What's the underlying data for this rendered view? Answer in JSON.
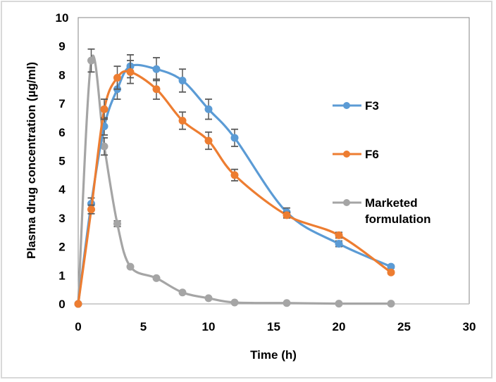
{
  "chart_data": {
    "type": "line",
    "title": "",
    "xlabel": "Time (h)",
    "ylabel": "Plasma drug concentration (µg/ml)",
    "xlim": [
      0,
      30
    ],
    "ylim": [
      0,
      10
    ],
    "xticks": [
      0,
      5,
      10,
      15,
      20,
      25,
      30
    ],
    "yticks": [
      0,
      1,
      2,
      3,
      4,
      5,
      6,
      7,
      8,
      9,
      10
    ],
    "grid": false,
    "smooth": true,
    "legend_position": "right",
    "x": [
      0,
      1,
      2,
      3,
      4,
      6,
      8,
      10,
      12,
      16,
      20,
      24
    ],
    "series": [
      {
        "name": "F3",
        "color": "#5b9bd5",
        "values": [
          0,
          3.5,
          6.2,
          7.5,
          8.3,
          8.2,
          7.8,
          6.8,
          5.8,
          3.2,
          2.1,
          1.3
        ],
        "errors": [
          0,
          0.2,
          0.3,
          0.35,
          0.4,
          0.4,
          0.4,
          0.35,
          0.3,
          0.15,
          0.1,
          0.05
        ]
      },
      {
        "name": "F6",
        "color": "#ed7d31",
        "values": [
          0,
          3.3,
          6.8,
          7.9,
          8.1,
          7.5,
          6.4,
          5.7,
          4.5,
          3.1,
          2.4,
          1.1
        ],
        "errors": [
          0,
          0.15,
          0.35,
          0.4,
          0.4,
          0.35,
          0.3,
          0.3,
          0.2,
          0.1,
          0.1,
          0.05
        ]
      },
      {
        "name": "Marketed formulation",
        "legend_lines": [
          "Marketed",
          "formulation"
        ],
        "color": "#a5a5a5",
        "values": [
          0,
          8.5,
          5.5,
          2.8,
          1.3,
          0.9,
          0.4,
          0.2,
          0.05,
          0.03,
          0.01,
          0.01
        ],
        "errors": [
          0,
          0.4,
          0.3,
          0.1,
          0,
          0,
          0,
          0,
          0,
          0,
          0,
          0
        ]
      }
    ]
  }
}
